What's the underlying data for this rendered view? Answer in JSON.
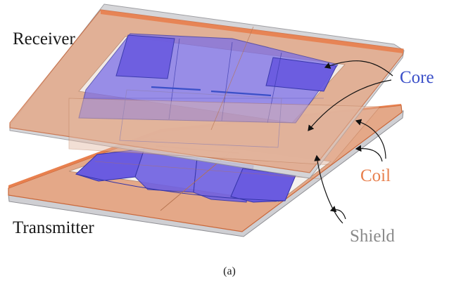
{
  "labels": {
    "receiver": "Receiver",
    "transmitter": "Transmitter",
    "core": "Core",
    "coil": "Coil",
    "shield": "Shield",
    "caption": "(a)"
  },
  "colors": {
    "text": "#1a1a1a",
    "core": "#3b3bd6",
    "coil": "#e87a45",
    "shield": "#8a8a8a",
    "shield_plate": "#c9c9cc",
    "coil_plate": "#e2a382",
    "core_block": "#6a5be0"
  }
}
